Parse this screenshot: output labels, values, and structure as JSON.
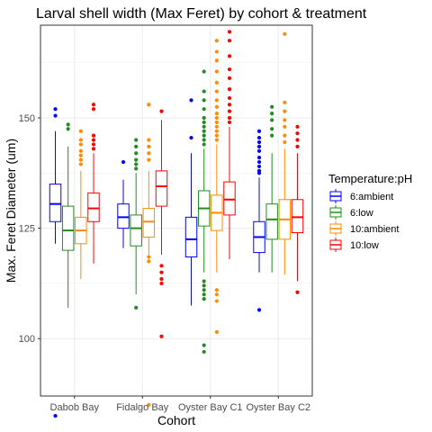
{
  "chart_data": {
    "type": "boxplot",
    "title": "Larval shell width (Max Feret) by cohort & treatment",
    "xlabel": "Cohort",
    "ylabel": "Max. Feret Diameter (um)",
    "ylim": [
      87,
      171
    ],
    "yticks": [
      100,
      125,
      150
    ],
    "grid": true,
    "legend_position": "right",
    "legend_title": "Temperature:pH",
    "categories": [
      "Dabob Bay",
      "Fidalgo Bay",
      "Oyster Bay C1",
      "Oyster Bay C2"
    ],
    "series": [
      {
        "name": "6:ambient",
        "color": "#0000ff",
        "boxes": [
          {
            "whisker_low": 121.5,
            "q1": 126.5,
            "median": 130.5,
            "q3": 135,
            "whisker_high": 147,
            "outliers": [
              152,
              150.5,
              82.5
            ]
          },
          {
            "whisker_low": 120.5,
            "q1": 125,
            "median": 127.5,
            "q3": 130.5,
            "whisker_high": 136,
            "outliers": [
              140
            ]
          },
          {
            "whisker_low": 107.5,
            "q1": 118.5,
            "median": 122.5,
            "q3": 127.5,
            "whisker_high": 142,
            "outliers": [
              154,
              145.5
            ]
          },
          {
            "whisker_low": 115,
            "q1": 119.5,
            "median": 123,
            "q3": 126.5,
            "whisker_high": 136.5,
            "outliers": [
              147,
              145.5,
              144.5,
              143.5,
              142.5,
              141,
              140,
              139,
              138,
              137.5,
              106.5
            ]
          }
        ]
      },
      {
        "name": "6:low",
        "color": "#228b22",
        "boxes": [
          {
            "whisker_low": 107,
            "q1": 120,
            "median": 124.5,
            "q3": 130,
            "whisker_high": 143.5,
            "outliers": [
              148.5,
              147.5
            ]
          },
          {
            "whisker_low": 110,
            "q1": 121,
            "median": 125,
            "q3": 128,
            "whisker_high": 137.5,
            "outliers": [
              145,
              143.5,
              142,
              140.5,
              139.5,
              138.5,
              107
            ]
          },
          {
            "whisker_low": 115,
            "q1": 125.5,
            "median": 129.5,
            "q3": 133.5,
            "whisker_high": 143,
            "outliers": [
              160.5,
              156,
              154,
              152,
              150,
              149,
              148,
              147,
              146,
              145,
              144,
              113,
              112,
              111,
              110,
              109,
              98.5,
              97
            ]
          },
          {
            "whisker_low": 115,
            "q1": 122.5,
            "median": 127,
            "q3": 130.5,
            "whisker_high": 142,
            "outliers": [
              152.5,
              151,
              149.5,
              147.5,
              146
            ]
          }
        ]
      },
      {
        "name": "10:ambient",
        "color": "#ff8c00",
        "boxes": [
          {
            "whisker_low": 113.5,
            "q1": 121.5,
            "median": 124.5,
            "q3": 127.5,
            "whisker_high": 138,
            "outliers": [
              147,
              145,
              144,
              142.5,
              141.5,
              140.5,
              139.5
            ]
          },
          {
            "whisker_low": 119,
            "q1": 123,
            "median": 126.5,
            "q3": 129.5,
            "whisker_high": 138,
            "outliers": [
              153,
              145,
              143.5,
              142,
              140.5,
              118.5,
              117.5,
              85
            ]
          },
          {
            "whisker_low": 115,
            "q1": 124.5,
            "median": 128.5,
            "q3": 132.5,
            "whisker_high": 144,
            "outliers": [
              167.5,
              165,
              163,
              160.5,
              158,
              156,
              154,
              152.5,
              151,
              150,
              149,
              148,
              147,
              146,
              145,
              111,
              110,
              108.5,
              101.5
            ]
          },
          {
            "whisker_low": 114.5,
            "q1": 122.5,
            "median": 127,
            "q3": 131.5,
            "whisker_high": 143,
            "outliers": [
              169,
              153.5,
              151.5,
              149.5,
              148,
              146,
              144.5
            ]
          }
        ]
      },
      {
        "name": "10:low",
        "color": "#ff0000",
        "boxes": [
          {
            "whisker_low": 117,
            "q1": 126.5,
            "median": 129.5,
            "q3": 133,
            "whisker_high": 142,
            "outliers": [
              153,
              152,
              146,
              145,
              144,
              143
            ]
          },
          {
            "whisker_low": 119,
            "q1": 130,
            "median": 134.5,
            "q3": 138,
            "whisker_high": 149.5,
            "outliers": [
              151.5,
              116.5,
              115,
              113.5,
              112.5,
              100.5
            ]
          },
          {
            "whisker_low": 118,
            "q1": 128,
            "median": 131.5,
            "q3": 135.5,
            "whisker_high": 148,
            "outliers": [
              169.5,
              167.5,
              164,
              161,
              159,
              156.5,
              154.5,
              153,
              151.5,
              150,
              149
            ]
          },
          {
            "whisker_low": 113,
            "q1": 124,
            "median": 127.5,
            "q3": 131.5,
            "whisker_high": 142,
            "outliers": [
              148,
              146.5,
              145,
              143.5,
              110.5
            ]
          }
        ]
      }
    ]
  }
}
